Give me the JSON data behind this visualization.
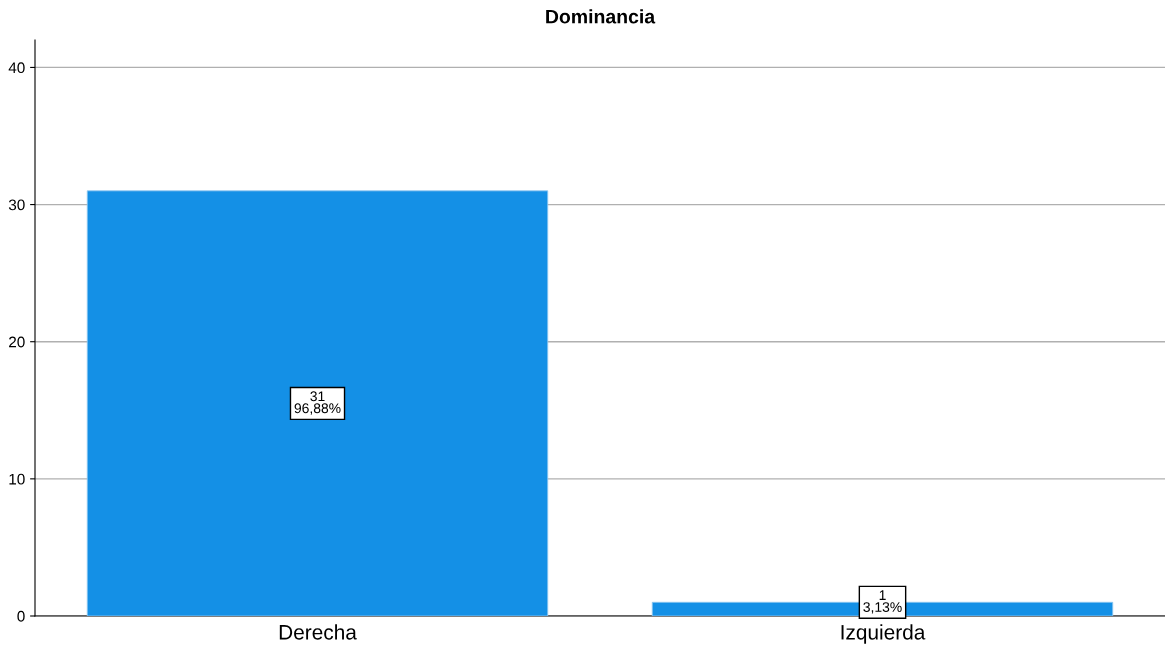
{
  "chart_data": {
    "type": "bar",
    "title": "Dominancia",
    "categories": [
      "Derecha",
      "Izquierda"
    ],
    "values": [
      31,
      1
    ],
    "color": "#1490e6",
    "value_labels": [
      "31\n96,88%",
      "1\n3,13%"
    ],
    "ylim": [
      0,
      42
    ],
    "yticks": [
      0,
      10,
      20,
      30,
      40
    ],
    "grid": "y"
  }
}
